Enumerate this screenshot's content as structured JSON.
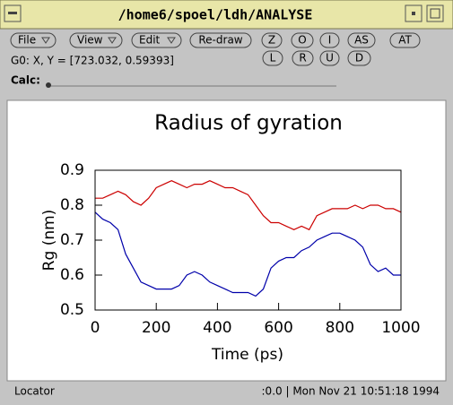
{
  "window": {
    "title": "/home6/spoel/ldh/ANALYSE"
  },
  "toolbar": {
    "buttons": [
      "File",
      "View",
      "Edit",
      "Re-draw",
      "Z",
      "O",
      "I",
      "AS",
      "AT",
      "L",
      "R",
      "U",
      "D"
    ],
    "coords": "G0: X, Y = [723.032, 0.59393]",
    "calc": "Calc:"
  },
  "statusbar": {
    "left": "Locator",
    "right": ":0.0 | Mon Nov 21 10:51:18 1994"
  },
  "chart_data": {
    "type": "line",
    "title": "Radius of gyration",
    "x_label": "Time (ps)",
    "y_label": "Rg (nm)",
    "x": [
      0,
      25,
      50,
      75,
      100,
      125,
      150,
      175,
      200,
      225,
      250,
      275,
      300,
      325,
      350,
      375,
      400,
      425,
      450,
      475,
      500,
      525,
      550,
      575,
      600,
      625,
      650,
      675,
      700,
      725,
      750,
      775,
      800,
      825,
      850,
      875,
      900,
      925,
      950,
      975,
      1000
    ],
    "series": [
      {
        "color": "#cc0000",
        "values": [
          0.82,
          0.82,
          0.83,
          0.84,
          0.83,
          0.81,
          0.8,
          0.82,
          0.85,
          0.86,
          0.87,
          0.86,
          0.85,
          0.86,
          0.86,
          0.87,
          0.86,
          0.85,
          0.85,
          0.84,
          0.83,
          0.8,
          0.77,
          0.75,
          0.75,
          0.74,
          0.73,
          0.74,
          0.73,
          0.77,
          0.78,
          0.79,
          0.79,
          0.79,
          0.8,
          0.79,
          0.8,
          0.8,
          0.79,
          0.79,
          0.78
        ]
      },
      {
        "color": "#0000aa",
        "values": [
          0.78,
          0.76,
          0.75,
          0.73,
          0.66,
          0.62,
          0.58,
          0.57,
          0.56,
          0.56,
          0.56,
          0.57,
          0.6,
          0.61,
          0.6,
          0.58,
          0.57,
          0.56,
          0.55,
          0.55,
          0.55,
          0.54,
          0.56,
          0.62,
          0.64,
          0.65,
          0.65,
          0.67,
          0.68,
          0.7,
          0.71,
          0.72,
          0.72,
          0.71,
          0.7,
          0.68,
          0.63,
          0.61,
          0.62,
          0.6,
          0.6
        ]
      }
    ],
    "xlim": [
      0,
      1000
    ],
    "xticks": [
      0,
      200,
      400,
      600,
      800,
      1000
    ],
    "ylim": [
      0.5,
      0.9
    ],
    "yticks": [
      0.5,
      0.6,
      0.7,
      0.8,
      0.9
    ]
  }
}
